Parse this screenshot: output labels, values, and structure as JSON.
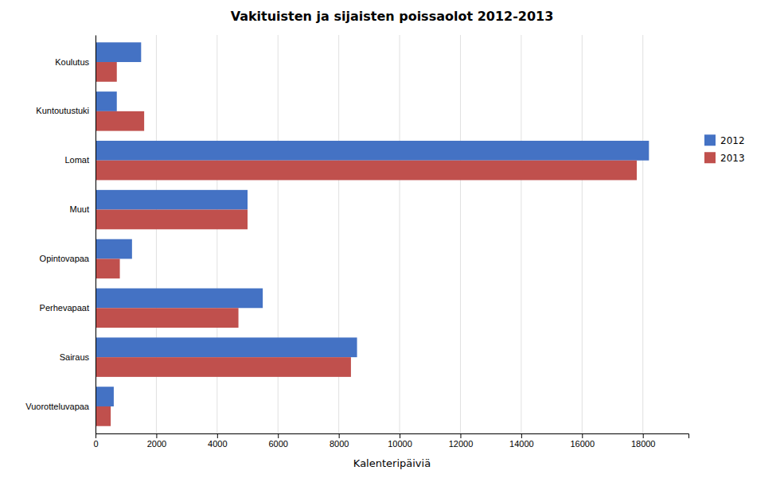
{
  "chart_data": {
    "type": "bar",
    "orientation": "horizontal",
    "title": "Vakituisten ja sijaisten poissaolot 2012-2013",
    "xlabel": "Kalenteripäiviä",
    "categories": [
      "Vuorotteluvapaa",
      "Sairaus",
      "Perhevapaat",
      "Opintovapaa",
      "Muut",
      "Lomat",
      "Kuntoutustuki",
      "Koulutus"
    ],
    "series": [
      {
        "name": "2012",
        "color": "#4472C4",
        "values": [
          600,
          8600,
          5500,
          1200,
          5000,
          18200,
          700,
          1500
        ]
      },
      {
        "name": "2013",
        "color": "#C0504D",
        "values": [
          500,
          8400,
          4700,
          800,
          5000,
          17800,
          1600,
          700
        ]
      }
    ],
    "xlim": [
      0,
      19500
    ],
    "xticks": [
      0,
      2000,
      4000,
      6000,
      8000,
      10000,
      12000,
      14000,
      16000,
      18000
    ],
    "grid": true,
    "legend": "right"
  }
}
